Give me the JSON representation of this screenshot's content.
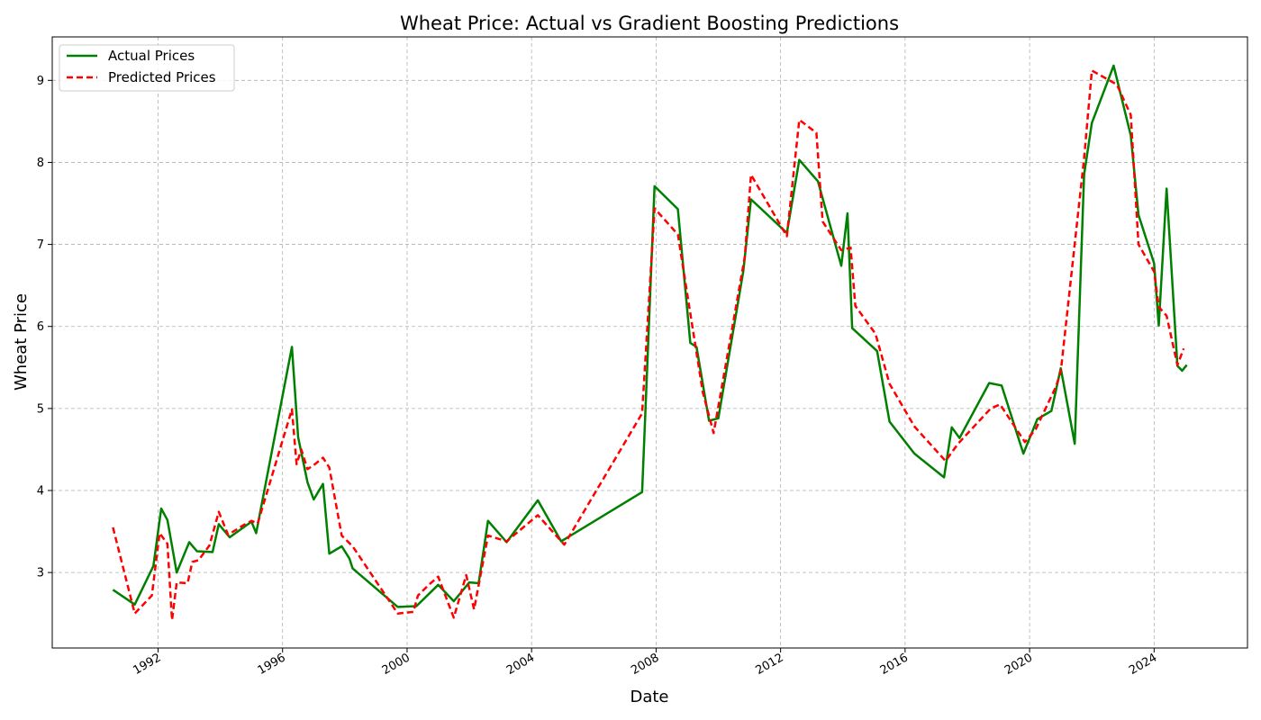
{
  "chart_data": {
    "type": "line",
    "title": "Wheat Price: Actual vs Gradient Boosting Predictions",
    "xlabel": "Date",
    "ylabel": "Wheat Price",
    "x_ticks": [
      "1992",
      "1996",
      "2000",
      "2004",
      "2008",
      "2012",
      "2016",
      "2020",
      "2024"
    ],
    "y_ticks": [
      "3",
      "4",
      "5",
      "6",
      "7",
      "8",
      "9"
    ],
    "xlim": [
      1988.6,
      2027.0
    ],
    "ylim": [
      2.08,
      9.53
    ],
    "grid": true,
    "legend_position": "top-left",
    "series": [
      {
        "name": "Actual Prices",
        "color": "#008000",
        "dash": "solid",
        "points": [
          [
            1990.55,
            2.79
          ],
          [
            1991.25,
            2.61
          ],
          [
            1991.85,
            3.08
          ],
          [
            1992.1,
            3.78
          ],
          [
            1992.3,
            3.64
          ],
          [
            1992.6,
            3.0
          ],
          [
            1993.0,
            3.37
          ],
          [
            1993.25,
            3.26
          ],
          [
            1993.75,
            3.25
          ],
          [
            1993.95,
            3.59
          ],
          [
            1994.3,
            3.43
          ],
          [
            1995.0,
            3.62
          ],
          [
            1995.15,
            3.48
          ],
          [
            1996.3,
            5.75
          ],
          [
            1996.5,
            4.65
          ],
          [
            1996.8,
            4.1
          ],
          [
            1997.0,
            3.89
          ],
          [
            1997.3,
            4.08
          ],
          [
            1997.5,
            3.23
          ],
          [
            1997.9,
            3.32
          ],
          [
            1998.15,
            3.17
          ],
          [
            1998.25,
            3.05
          ],
          [
            1999.7,
            2.58
          ],
          [
            2000.3,
            2.59
          ],
          [
            2001.0,
            2.85
          ],
          [
            2001.5,
            2.65
          ],
          [
            2002.0,
            2.88
          ],
          [
            2002.3,
            2.87
          ],
          [
            2002.6,
            3.63
          ],
          [
            2003.2,
            3.37
          ],
          [
            2004.2,
            3.88
          ],
          [
            2004.95,
            3.38
          ],
          [
            2007.55,
            3.98
          ],
          [
            2007.95,
            7.71
          ],
          [
            2008.7,
            7.43
          ],
          [
            2009.1,
            5.8
          ],
          [
            2009.3,
            5.75
          ],
          [
            2009.7,
            4.85
          ],
          [
            2010.0,
            4.88
          ],
          [
            2010.8,
            6.67
          ],
          [
            2011.05,
            7.55
          ],
          [
            2012.2,
            7.14
          ],
          [
            2012.6,
            8.03
          ],
          [
            2013.2,
            7.77
          ],
          [
            2013.95,
            6.74
          ],
          [
            2014.15,
            7.38
          ],
          [
            2014.3,
            5.98
          ],
          [
            2015.1,
            5.7
          ],
          [
            2015.5,
            4.84
          ],
          [
            2016.3,
            4.45
          ],
          [
            2017.25,
            4.16
          ],
          [
            2017.5,
            4.77
          ],
          [
            2017.75,
            4.64
          ],
          [
            2018.7,
            5.31
          ],
          [
            2019.1,
            5.28
          ],
          [
            2019.8,
            4.45
          ],
          [
            2020.25,
            4.87
          ],
          [
            2020.7,
            4.97
          ],
          [
            2021.0,
            5.49
          ],
          [
            2021.45,
            4.57
          ],
          [
            2021.75,
            7.85
          ],
          [
            2022.0,
            8.48
          ],
          [
            2022.7,
            9.18
          ],
          [
            2023.25,
            8.33
          ],
          [
            2023.5,
            7.36
          ],
          [
            2024.0,
            6.77
          ],
          [
            2024.15,
            6.01
          ],
          [
            2024.4,
            7.68
          ],
          [
            2024.75,
            5.52
          ],
          [
            2024.9,
            5.46
          ],
          [
            2025.05,
            5.53
          ]
        ]
      },
      {
        "name": "Predicted Prices",
        "color": "#ff0000",
        "dash": "dashed",
        "points": [
          [
            1990.55,
            3.55
          ],
          [
            1991.25,
            2.5
          ],
          [
            1991.8,
            2.72
          ],
          [
            1992.05,
            3.48
          ],
          [
            1992.3,
            3.35
          ],
          [
            1992.45,
            2.42
          ],
          [
            1992.6,
            2.88
          ],
          [
            1992.95,
            2.87
          ],
          [
            1993.1,
            3.13
          ],
          [
            1993.3,
            3.15
          ],
          [
            1993.65,
            3.33
          ],
          [
            1993.95,
            3.74
          ],
          [
            1994.25,
            3.46
          ],
          [
            1994.75,
            3.58
          ],
          [
            1995.0,
            3.63
          ],
          [
            1995.2,
            3.6
          ],
          [
            1996.3,
            4.99
          ],
          [
            1996.45,
            4.32
          ],
          [
            1996.6,
            4.5
          ],
          [
            1996.8,
            4.26
          ],
          [
            1997.0,
            4.31
          ],
          [
            1997.3,
            4.4
          ],
          [
            1997.5,
            4.28
          ],
          [
            1997.9,
            3.45
          ],
          [
            1998.25,
            3.32
          ],
          [
            1999.7,
            2.5
          ],
          [
            2000.2,
            2.52
          ],
          [
            2000.35,
            2.72
          ],
          [
            2000.7,
            2.85
          ],
          [
            2001.0,
            2.95
          ],
          [
            2001.5,
            2.45
          ],
          [
            2001.9,
            2.97
          ],
          [
            2002.15,
            2.55
          ],
          [
            2002.6,
            3.45
          ],
          [
            2003.2,
            3.38
          ],
          [
            2004.2,
            3.7
          ],
          [
            2005.05,
            3.34
          ],
          [
            2007.55,
            4.94
          ],
          [
            2007.95,
            7.44
          ],
          [
            2008.7,
            7.12
          ],
          [
            2009.5,
            5.2
          ],
          [
            2009.85,
            4.7
          ],
          [
            2010.85,
            6.85
          ],
          [
            2011.05,
            7.85
          ],
          [
            2012.2,
            7.1
          ],
          [
            2012.6,
            8.52
          ],
          [
            2013.15,
            8.36
          ],
          [
            2013.35,
            7.28
          ],
          [
            2013.95,
            6.93
          ],
          [
            2014.25,
            6.96
          ],
          [
            2014.4,
            6.25
          ],
          [
            2015.05,
            5.91
          ],
          [
            2015.5,
            5.3
          ],
          [
            2016.3,
            4.78
          ],
          [
            2017.3,
            4.36
          ],
          [
            2017.7,
            4.57
          ],
          [
            2018.75,
            5.0
          ],
          [
            2019.05,
            5.05
          ],
          [
            2019.85,
            4.59
          ],
          [
            2020.2,
            4.75
          ],
          [
            2020.85,
            5.27
          ],
          [
            2021.0,
            5.45
          ],
          [
            2021.75,
            8.05
          ],
          [
            2022.0,
            9.12
          ],
          [
            2022.8,
            8.95
          ],
          [
            2023.25,
            8.58
          ],
          [
            2023.5,
            7.0
          ],
          [
            2024.0,
            6.67
          ],
          [
            2024.15,
            6.24
          ],
          [
            2024.4,
            6.13
          ],
          [
            2024.75,
            5.53
          ],
          [
            2024.95,
            5.73
          ]
        ]
      }
    ]
  }
}
